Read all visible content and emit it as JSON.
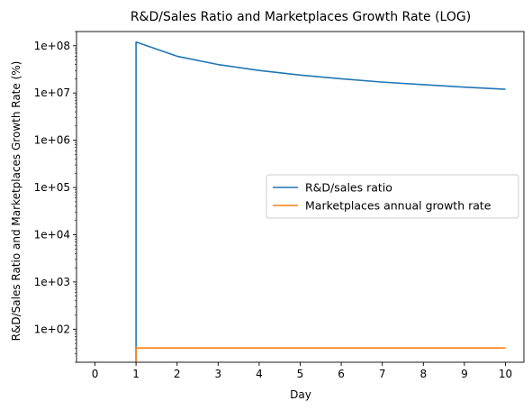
{
  "chart_data": {
    "type": "line",
    "title": "R&D/Sales Ratio and Marketplaces Growth Rate (LOG)",
    "xlabel": "Day",
    "ylabel": "R&D/Sales Ratio and Marketplaces Growth Rate (%)",
    "y_scale": "log",
    "x_ticks": [
      0,
      1,
      2,
      3,
      4,
      5,
      6,
      7,
      8,
      9,
      10
    ],
    "x_tick_labels": [
      "0",
      "1",
      "2",
      "3",
      "4",
      "5",
      "6",
      "7",
      "8",
      "9",
      "10"
    ],
    "y_ticks": [
      100,
      1000,
      10000,
      100000,
      1000000,
      10000000,
      100000000
    ],
    "y_tick_labels": [
      "1e+02",
      "1e+03",
      "1e+04",
      "1e+05",
      "1e+06",
      "1e+07",
      "1e+08"
    ],
    "xlim": [
      -0.45,
      10.45
    ],
    "ylim": [
      20,
      200000000
    ],
    "grid": false,
    "legend_position": "center-right",
    "series": [
      {
        "name": "R&D/sales ratio",
        "color": "#1f77b4",
        "x": [
          1,
          1,
          2,
          3,
          4,
          5,
          6,
          7,
          8,
          9,
          10
        ],
        "y": [
          20,
          120000000,
          60000000,
          40000000,
          30000000,
          24000000,
          20000000,
          17000000,
          15000000,
          13300000,
          12000000
        ]
      },
      {
        "name": "Marketplaces annual growth rate",
        "color": "#ff7f0e",
        "x": [
          1,
          1,
          2,
          3,
          4,
          5,
          6,
          7,
          8,
          9,
          10
        ],
        "y": [
          20,
          40,
          40,
          40,
          40,
          40,
          40,
          40,
          40,
          40,
          40
        ]
      }
    ]
  }
}
